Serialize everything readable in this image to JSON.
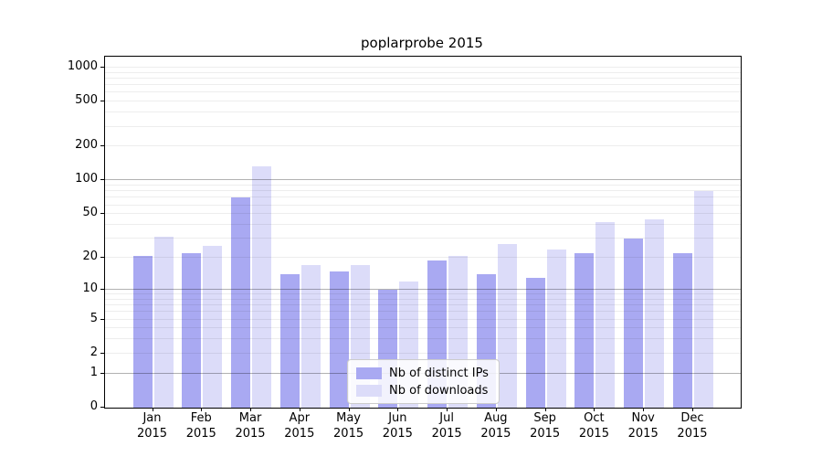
{
  "title": "poplarprobe 2015",
  "chart_data": {
    "type": "bar",
    "title": "poplarprobe 2015",
    "categories": [
      "Jan",
      "Feb",
      "Mar",
      "Apr",
      "May",
      "Jun",
      "Jul",
      "Aug",
      "Sep",
      "Oct",
      "Nov",
      "Dec"
    ],
    "year_label": "2015",
    "series": [
      {
        "name": "Nb of distinct IPs",
        "color": "#a9a9f2",
        "values": [
          21,
          22,
          70,
          14,
          15,
          10,
          19,
          14,
          13,
          22,
          30,
          22
        ]
      },
      {
        "name": "Nb of downloads",
        "color": "#dcdcf9",
        "values": [
          31,
          26,
          134,
          17,
          17,
          12,
          21,
          27,
          24,
          42,
          45,
          80
        ]
      }
    ],
    "yscale": "log1p",
    "yticks": [
      0,
      1,
      2,
      5,
      10,
      20,
      50,
      100,
      200,
      500,
      1000
    ],
    "ylim": [
      0,
      1250
    ],
    "grid": true,
    "legend_position": "lower-center",
    "colors": {
      "major_grid": "#b3b3b3",
      "minor_grid": "#ededed",
      "axis": "#000000"
    }
  }
}
